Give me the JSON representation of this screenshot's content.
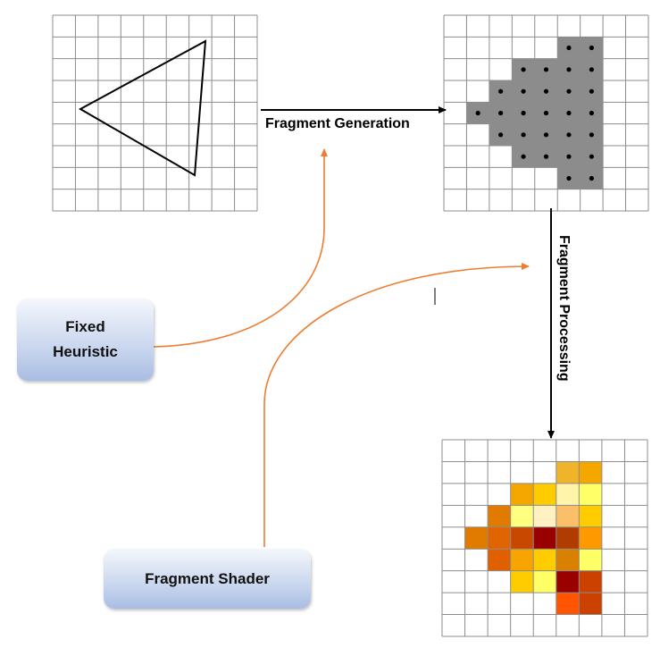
{
  "labels": {
    "fragment_generation": "Fragment Generation",
    "fragment_processing": "Fragment Processing"
  },
  "boxes": {
    "fixed_heuristic_line1": "Fixed",
    "fixed_heuristic_line2": "Heuristic",
    "fragment_shader": "Fragment Shader"
  },
  "colors": {
    "grid_line": "#8c8c8c",
    "covered_cell": "#8c8c8c",
    "arrow_black": "#000000",
    "arrow_orange": "#ed7d31"
  },
  "grids": {
    "cols": 9,
    "rows": 9,
    "covered_cells": [
      [
        5,
        1
      ],
      [
        6,
        1
      ],
      [
        3,
        2
      ],
      [
        4,
        2
      ],
      [
        5,
        2
      ],
      [
        6,
        2
      ],
      [
        2,
        3
      ],
      [
        3,
        3
      ],
      [
        4,
        3
      ],
      [
        5,
        3
      ],
      [
        6,
        3
      ],
      [
        1,
        4
      ],
      [
        2,
        4
      ],
      [
        3,
        4
      ],
      [
        4,
        4
      ],
      [
        5,
        4
      ],
      [
        6,
        4
      ],
      [
        2,
        5
      ],
      [
        3,
        5
      ],
      [
        4,
        5
      ],
      [
        5,
        5
      ],
      [
        6,
        5
      ],
      [
        3,
        6
      ],
      [
        4,
        6
      ],
      [
        5,
        6
      ],
      [
        6,
        6
      ],
      [
        5,
        7
      ],
      [
        6,
        7
      ]
    ],
    "dot_cells": [
      [
        5,
        1
      ],
      [
        6,
        1
      ],
      [
        3,
        2
      ],
      [
        4,
        2
      ],
      [
        5,
        2
      ],
      [
        6,
        2
      ],
      [
        2,
        3
      ],
      [
        3,
        3
      ],
      [
        4,
        3
      ],
      [
        5,
        3
      ],
      [
        6,
        3
      ],
      [
        1,
        4
      ],
      [
        2,
        4
      ],
      [
        3,
        4
      ],
      [
        4,
        4
      ],
      [
        5,
        4
      ],
      [
        6,
        4
      ],
      [
        2,
        5
      ],
      [
        3,
        5
      ],
      [
        4,
        5
      ],
      [
        5,
        5
      ],
      [
        6,
        5
      ],
      [
        3,
        6
      ],
      [
        4,
        6
      ],
      [
        5,
        6
      ],
      [
        6,
        6
      ],
      [
        5,
        7
      ],
      [
        6,
        7
      ]
    ],
    "shaded_cells": [
      {
        "cell": [
          5,
          1
        ],
        "color": "#f0b42a"
      },
      {
        "cell": [
          6,
          1
        ],
        "color": "#f5a700"
      },
      {
        "cell": [
          3,
          2
        ],
        "color": "#f5a700"
      },
      {
        "cell": [
          4,
          2
        ],
        "color": "#ffcc00"
      },
      {
        "cell": [
          5,
          2
        ],
        "color": "#fff4aa"
      },
      {
        "cell": [
          6,
          2
        ],
        "color": "#ffff66"
      },
      {
        "cell": [
          2,
          3
        ],
        "color": "#e07b00"
      },
      {
        "cell": [
          3,
          3
        ],
        "color": "#ffff80"
      },
      {
        "cell": [
          4,
          3
        ],
        "color": "#fff2c2"
      },
      {
        "cell": [
          5,
          3
        ],
        "color": "#fbbf6a"
      },
      {
        "cell": [
          6,
          3
        ],
        "color": "#ffcc00"
      },
      {
        "cell": [
          1,
          4
        ],
        "color": "#e07b00"
      },
      {
        "cell": [
          2,
          4
        ],
        "color": "#e06400"
      },
      {
        "cell": [
          3,
          4
        ],
        "color": "#c84800"
      },
      {
        "cell": [
          4,
          4
        ],
        "color": "#990000"
      },
      {
        "cell": [
          5,
          4
        ],
        "color": "#b03c00"
      },
      {
        "cell": [
          6,
          4
        ],
        "color": "#ff9900"
      },
      {
        "cell": [
          2,
          5
        ],
        "color": "#e06000"
      },
      {
        "cell": [
          3,
          5
        ],
        "color": "#f7a300"
      },
      {
        "cell": [
          4,
          5
        ],
        "color": "#ffcc00"
      },
      {
        "cell": [
          5,
          5
        ],
        "color": "#d98000"
      },
      {
        "cell": [
          6,
          5
        ],
        "color": "#ffff66"
      },
      {
        "cell": [
          3,
          6
        ],
        "color": "#ffcc00"
      },
      {
        "cell": [
          4,
          6
        ],
        "color": "#ffff66"
      },
      {
        "cell": [
          5,
          6
        ],
        "color": "#990000"
      },
      {
        "cell": [
          6,
          6
        ],
        "color": "#cc4000"
      },
      {
        "cell": [
          5,
          7
        ],
        "color": "#ff5500"
      },
      {
        "cell": [
          6,
          7
        ],
        "color": "#cc4000"
      }
    ]
  }
}
